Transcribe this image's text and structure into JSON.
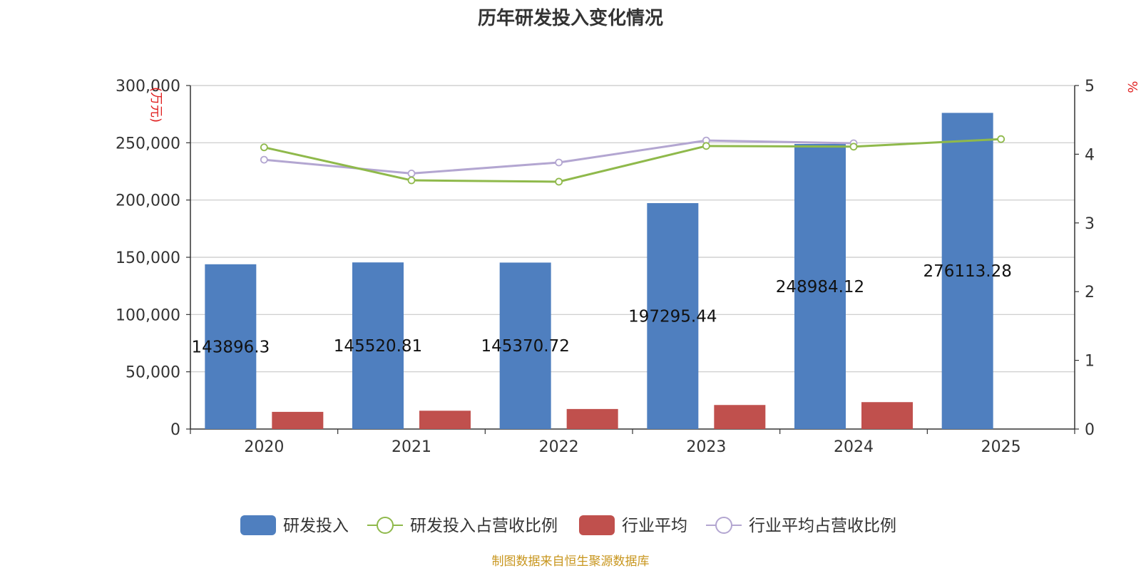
{
  "chart_data": {
    "type": "bar",
    "title": "历年研发投入变化情况",
    "categories": [
      "2020",
      "2021",
      "2022",
      "2023",
      "2024",
      "2025"
    ],
    "left_axis": {
      "unit_label": "(万元)",
      "ylim": [
        0,
        300000
      ],
      "ticks": [
        0,
        50000,
        100000,
        150000,
        200000,
        250000,
        300000
      ],
      "tick_labels": [
        "0",
        "50,000",
        "100,000",
        "150,000",
        "200,000",
        "250,000",
        "300,000"
      ]
    },
    "right_axis": {
      "unit_label": "%",
      "ylim": [
        0,
        5
      ],
      "ticks": [
        0,
        1,
        2,
        3,
        4,
        5
      ],
      "tick_labels": [
        "0",
        "1",
        "2",
        "3",
        "4",
        "5"
      ]
    },
    "series": [
      {
        "name": "研发投入",
        "type": "bar",
        "axis": "left",
        "color": "#4f7fbf",
        "values": [
          143896.3,
          145520.81,
          145370.72,
          197295.44,
          248984.12,
          276113.28
        ],
        "labels": [
          "143896.3",
          "145520.81",
          "145370.72",
          "197295.44",
          "248984.12",
          "276113.28"
        ]
      },
      {
        "name": "研发投入占营收比例",
        "type": "line",
        "axis": "right",
        "color": "#8fb94b",
        "values": [
          4.1,
          3.62,
          3.6,
          4.12,
          4.11,
          4.22
        ]
      },
      {
        "name": "行业平均",
        "type": "bar",
        "axis": "left",
        "color": "#c0504d",
        "values": [
          15000,
          16000,
          17500,
          21000,
          23500,
          null
        ]
      },
      {
        "name": "行业平均占营收比例",
        "type": "line",
        "axis": "right",
        "color": "#b3a6d1",
        "values": [
          3.92,
          3.72,
          3.88,
          4.2,
          4.16,
          null
        ]
      }
    ],
    "legend": {
      "position": "bottom-center",
      "items": [
        "研发投入",
        "研发投入占营收比例",
        "行业平均",
        "行业平均占营收比例"
      ]
    }
  },
  "source_note": "制图数据来自恒生聚源数据库"
}
